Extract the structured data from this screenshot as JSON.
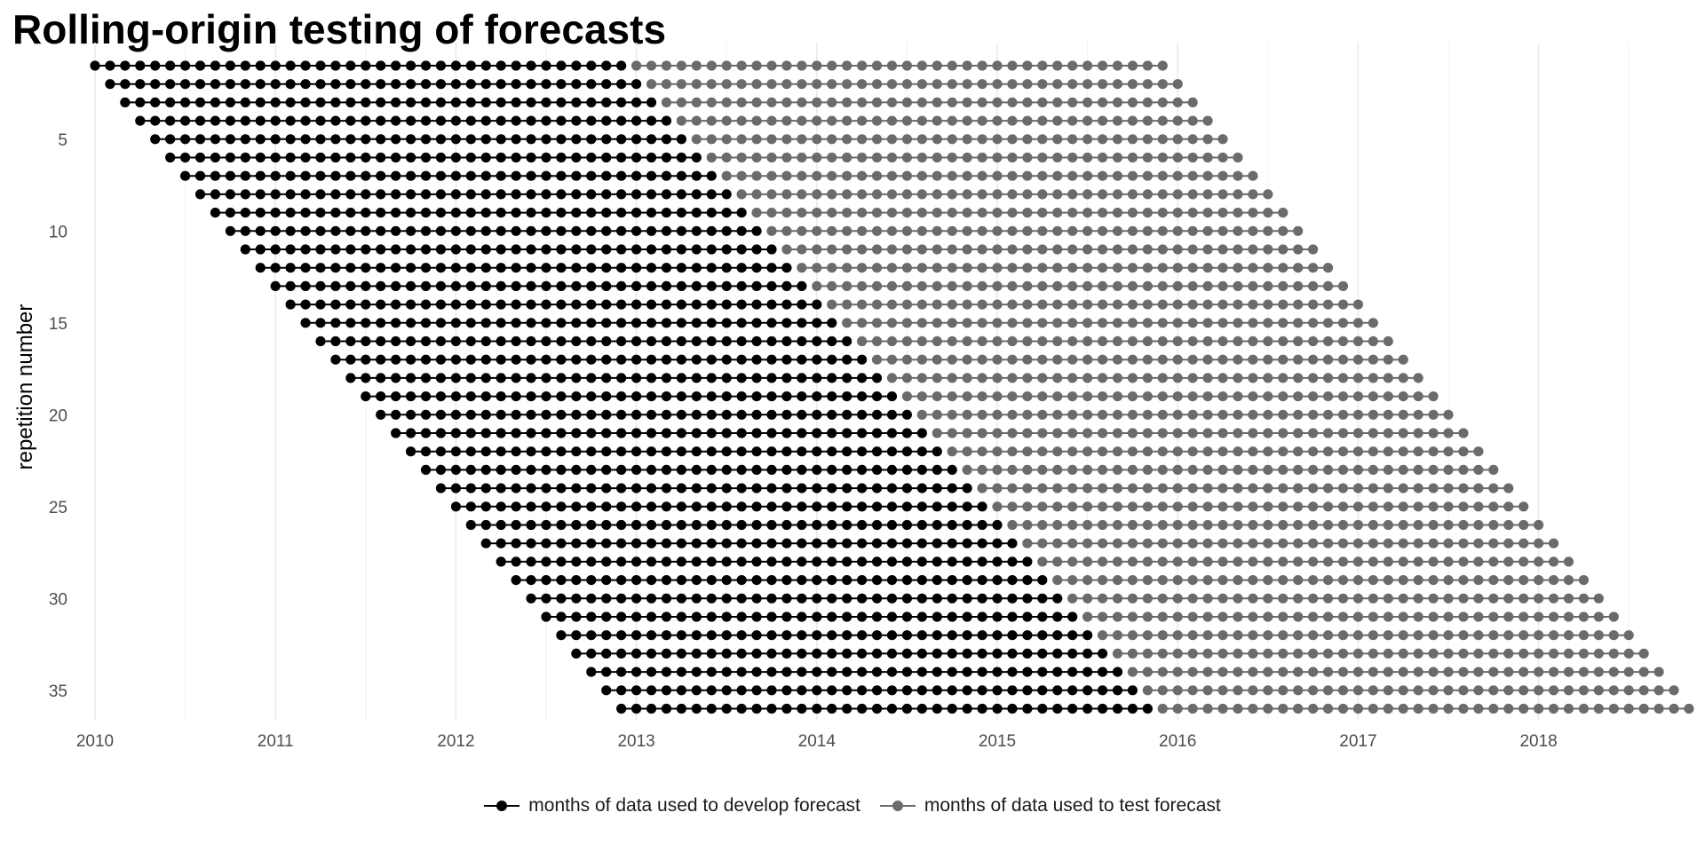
{
  "chart_data": {
    "type": "scatter",
    "title": "Rolling-origin testing of forecasts",
    "xlabel": "",
    "ylabel": "repetition number",
    "x_axis": {
      "type": "date",
      "range": [
        "2010-01",
        "2018-11"
      ],
      "ticks": [
        "2010",
        "2011",
        "2012",
        "2013",
        "2014",
        "2015",
        "2016",
        "2017",
        "2018"
      ]
    },
    "y_axis": {
      "reversed": true,
      "range": [
        1,
        36
      ],
      "ticks": [
        5,
        10,
        15,
        20,
        25,
        30,
        35
      ]
    },
    "grid": "vertical lines at years and half-years; none horizontal",
    "legend_position": "bottom",
    "repetitions": 36,
    "series": [
      {
        "name": "months of data used to develop forecast",
        "color": "#000000",
        "months_per_repetition": 36,
        "first_month_by_repetition": {
          "1": "2010-01",
          "36": "2012-12"
        },
        "last_month_by_repetition": {
          "1": "2012-12",
          "36": "2015-11"
        }
      },
      {
        "name": "months of data used to test forecast",
        "color": "#6b6b6b",
        "months_per_repetition": 36,
        "first_month_by_repetition": {
          "1": "2013-01",
          "36": "2015-12"
        },
        "last_month_by_repetition": {
          "1": "2015-12",
          "36": "2018-11"
        }
      }
    ]
  }
}
